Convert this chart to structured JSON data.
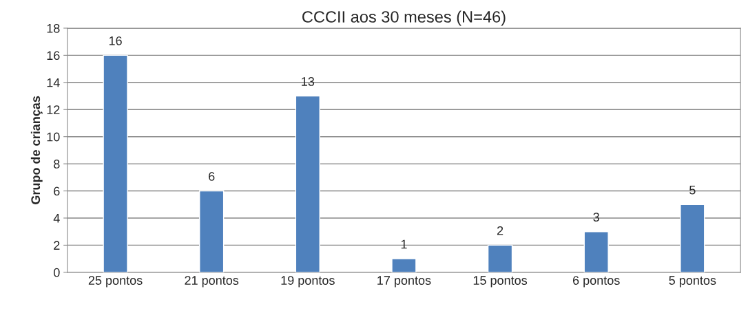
{
  "chart_data": {
    "type": "bar",
    "title": "CCCII aos 30 meses (N=46)",
    "ylabel": "Grupo de crianças",
    "categories": [
      "25 pontos",
      "21 pontos",
      "19 pontos",
      "17 pontos",
      "15 pontos",
      "6 pontos",
      "5 pontos"
    ],
    "values": [
      16,
      6,
      13,
      1,
      2,
      3,
      5
    ],
    "color": "#4f81bd",
    "ylim": [
      0,
      18
    ],
    "yticks": [
      0,
      2,
      4,
      6,
      8,
      10,
      12,
      14,
      16,
      18
    ],
    "grid": "y",
    "data_labels": true,
    "legend": false
  }
}
